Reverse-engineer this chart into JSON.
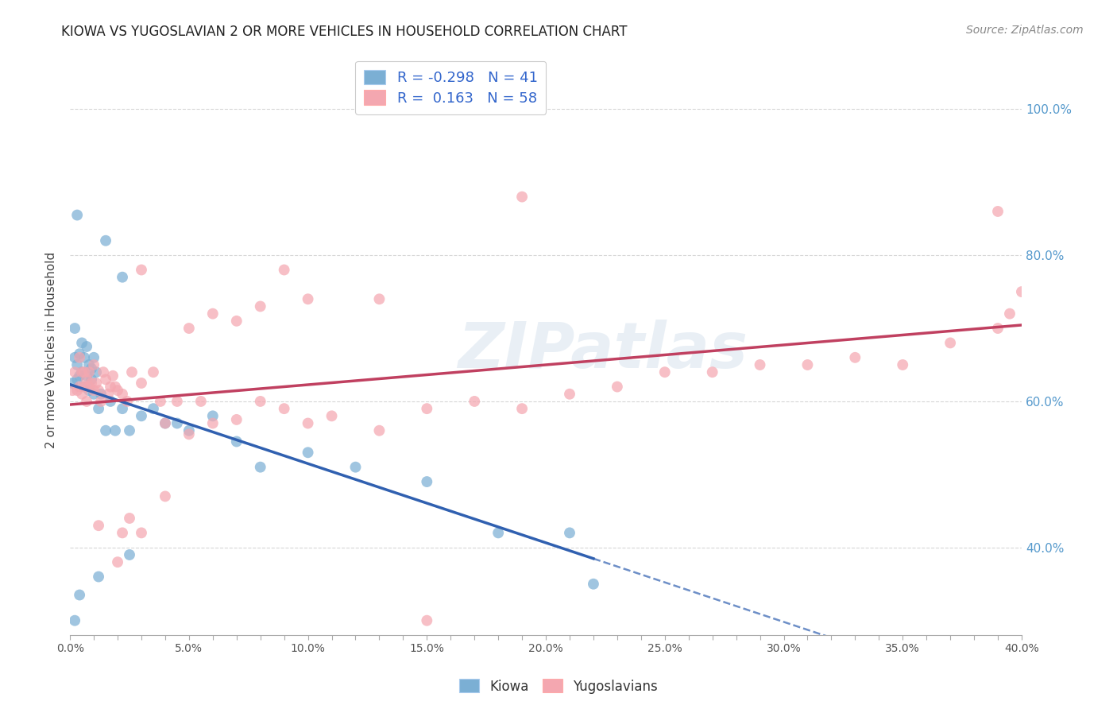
{
  "title": "KIOWA VS YUGOSLAVIAN 2 OR MORE VEHICLES IN HOUSEHOLD CORRELATION CHART",
  "source": "Source: ZipAtlas.com",
  "ylabel": "2 or more Vehicles in Household",
  "xlim": [
    0.0,
    0.4
  ],
  "ylim": [
    0.28,
    1.06
  ],
  "x_tick_labels": [
    "0.0%",
    "",
    "",
    "",
    "",
    "5.0%",
    "",
    "",
    "",
    "",
    "10.0%",
    "",
    "",
    "",
    "",
    "15.0%",
    "",
    "",
    "",
    "",
    "20.0%",
    "",
    "",
    "",
    "",
    "25.0%",
    "",
    "",
    "",
    "",
    "30.0%",
    "",
    "",
    "",
    "",
    "35.0%",
    "",
    "",
    "",
    "",
    "40.0%"
  ],
  "x_tick_vals": [
    0.0,
    0.01,
    0.02,
    0.03,
    0.04,
    0.05,
    0.06,
    0.07,
    0.08,
    0.09,
    0.1,
    0.11,
    0.12,
    0.13,
    0.14,
    0.15,
    0.16,
    0.17,
    0.18,
    0.19,
    0.2,
    0.21,
    0.22,
    0.23,
    0.24,
    0.25,
    0.26,
    0.27,
    0.28,
    0.29,
    0.3,
    0.31,
    0.32,
    0.33,
    0.34,
    0.35,
    0.36,
    0.37,
    0.38,
    0.39,
    0.4
  ],
  "y_tick_vals": [
    0.4,
    0.6,
    0.8,
    1.0
  ],
  "y_tick_labels": [
    "40.0%",
    "60.0%",
    "80.0%",
    "100.0%"
  ],
  "kiowa_color": "#7BAFD4",
  "yugoslav_color": "#F4A7B0",
  "kiowa_R": -0.298,
  "kiowa_N": 41,
  "yugoslav_R": 0.163,
  "yugoslav_N": 58,
  "trend_blue": "#3060B0",
  "trend_pink": "#C04060",
  "watermark": "ZIPatlas",
  "legend_label1": "Kiowa",
  "legend_label2": "Yugoslavians",
  "kiowa_x": [
    0.001,
    0.002,
    0.002,
    0.003,
    0.003,
    0.004,
    0.004,
    0.005,
    0.005,
    0.006,
    0.006,
    0.007,
    0.007,
    0.008,
    0.008,
    0.009,
    0.009,
    0.01,
    0.01,
    0.011,
    0.012,
    0.013,
    0.015,
    0.017,
    0.019,
    0.022,
    0.025,
    0.03,
    0.035,
    0.04,
    0.045,
    0.05,
    0.06,
    0.07,
    0.08,
    0.1,
    0.12,
    0.15,
    0.18,
    0.21,
    0.22
  ],
  "kiowa_y": [
    0.625,
    0.7,
    0.66,
    0.63,
    0.65,
    0.635,
    0.665,
    0.64,
    0.68,
    0.62,
    0.66,
    0.635,
    0.675,
    0.65,
    0.615,
    0.645,
    0.63,
    0.66,
    0.61,
    0.64,
    0.59,
    0.61,
    0.56,
    0.6,
    0.56,
    0.59,
    0.56,
    0.58,
    0.59,
    0.57,
    0.57,
    0.56,
    0.58,
    0.545,
    0.51,
    0.53,
    0.51,
    0.49,
    0.42,
    0.42,
    0.35
  ],
  "kiowa_y_outliers": [
    0.855,
    0.82,
    0.77,
    0.335,
    0.36,
    0.39,
    0.3
  ],
  "kiowa_x_outliers": [
    0.003,
    0.015,
    0.022,
    0.004,
    0.012,
    0.025,
    0.002
  ],
  "yugoslav_x": [
    0.001,
    0.002,
    0.003,
    0.004,
    0.004,
    0.005,
    0.005,
    0.006,
    0.006,
    0.007,
    0.007,
    0.008,
    0.008,
    0.009,
    0.01,
    0.01,
    0.011,
    0.012,
    0.013,
    0.014,
    0.015,
    0.016,
    0.017,
    0.018,
    0.019,
    0.02,
    0.022,
    0.024,
    0.026,
    0.03,
    0.035,
    0.038,
    0.04,
    0.045,
    0.05,
    0.055,
    0.06,
    0.07,
    0.08,
    0.09,
    0.1,
    0.11,
    0.13,
    0.15,
    0.17,
    0.19,
    0.21,
    0.23,
    0.25,
    0.27,
    0.29,
    0.31,
    0.33,
    0.35,
    0.37,
    0.39,
    0.395,
    0.4
  ],
  "yugoslav_y": [
    0.615,
    0.64,
    0.615,
    0.62,
    0.66,
    0.64,
    0.61,
    0.62,
    0.64,
    0.63,
    0.6,
    0.62,
    0.64,
    0.625,
    0.615,
    0.65,
    0.625,
    0.615,
    0.6,
    0.64,
    0.63,
    0.61,
    0.62,
    0.635,
    0.62,
    0.615,
    0.61,
    0.6,
    0.64,
    0.625,
    0.64,
    0.6,
    0.57,
    0.6,
    0.555,
    0.6,
    0.57,
    0.575,
    0.6,
    0.59,
    0.57,
    0.58,
    0.56,
    0.59,
    0.6,
    0.59,
    0.61,
    0.62,
    0.64,
    0.64,
    0.65,
    0.65,
    0.66,
    0.65,
    0.68,
    0.7,
    0.72,
    0.75
  ],
  "yugoslav_y_outliers": [
    0.88,
    0.86,
    0.78,
    0.78,
    0.74,
    0.72,
    0.7,
    0.71,
    0.73,
    0.74,
    0.47,
    0.44,
    0.42,
    0.43,
    0.42,
    0.38,
    0.3
  ],
  "yugoslav_x_outliers": [
    0.19,
    0.39,
    0.03,
    0.09,
    0.13,
    0.06,
    0.05,
    0.07,
    0.08,
    0.1,
    0.04,
    0.025,
    0.022,
    0.012,
    0.03,
    0.02,
    0.15
  ]
}
